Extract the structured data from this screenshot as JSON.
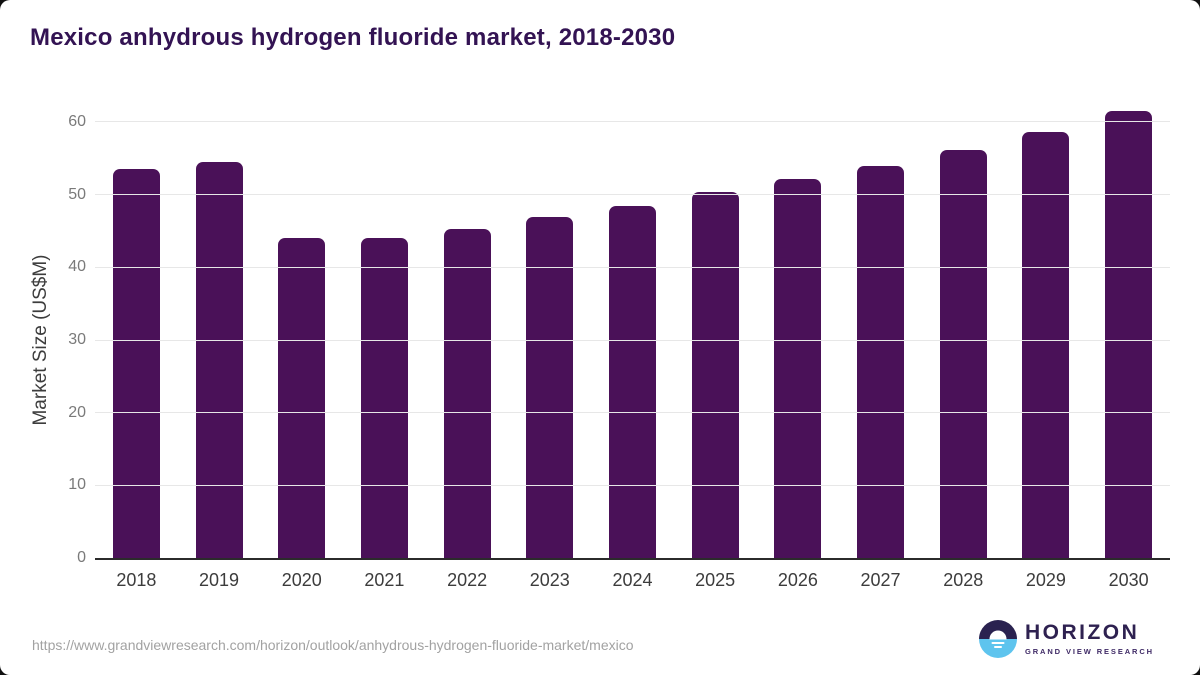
{
  "page": {
    "title": "Mexico anhydrous hydrogen fluoride market, 2018-2030"
  },
  "chart_data": {
    "type": "bar",
    "title": "Mexico anhydrous hydrogen fluoride market, 2018-2030",
    "categories": [
      "2018",
      "2019",
      "2020",
      "2021",
      "2022",
      "2023",
      "2024",
      "2025",
      "2026",
      "2027",
      "2028",
      "2029",
      "2030"
    ],
    "values": [
      53.5,
      54.5,
      44.0,
      44.0,
      45.3,
      46.9,
      48.5,
      50.3,
      52.1,
      53.9,
      56.1,
      58.6,
      61.5
    ],
    "xlabel": "",
    "ylabel": "Market Size (US$M)",
    "ylim": [
      0,
      62
    ],
    "yticks": [
      0,
      10,
      20,
      30,
      40,
      50,
      60
    ],
    "grid": "horizontal",
    "legend": "none",
    "bar_color": "#4a1158"
  },
  "colors": {
    "bar": "#4a1158",
    "title_text": "#331353",
    "axis_title_text": "#3d3d3d",
    "tick_label_text": "#7a7a7a",
    "x_label_text": "#3c3c3c",
    "gridline": "#e7e7e7",
    "axis_line": "#2b2b2b",
    "url_text": "#a2a2a2",
    "logo_dark": "#2a2250",
    "logo_blue": "#5ec4ee",
    "logo_text": "#2e2150"
  },
  "footer": {
    "url": "https://www.grandviewresearch.com/horizon/outlook/anhydrous-hydrogen-fluoride-market/mexico",
    "logo": {
      "brand": "HORIZON",
      "sub_brand": "GRAND VIEW RESEARCH"
    }
  }
}
